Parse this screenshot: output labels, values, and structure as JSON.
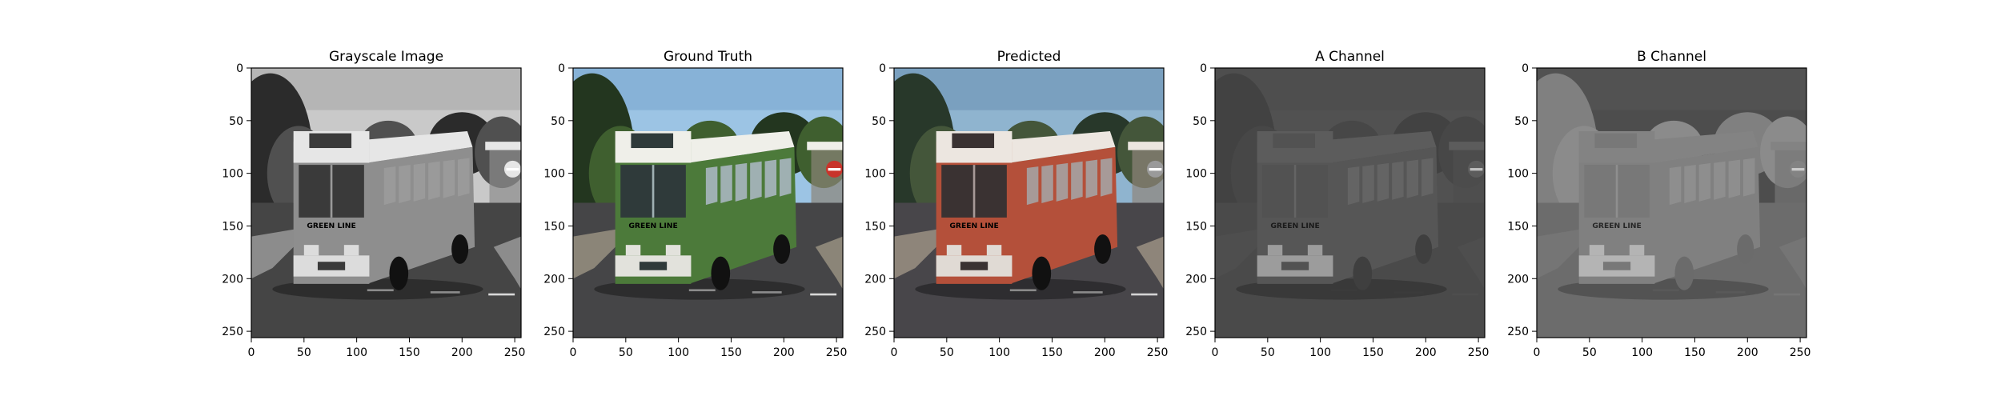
{
  "panels": [
    {
      "title": "Grayscale Image",
      "variant": "gray"
    },
    {
      "title": "Ground Truth",
      "variant": "truth"
    },
    {
      "title": "Predicted",
      "variant": "pred"
    },
    {
      "title": "A Channel",
      "variant": "achan"
    },
    {
      "title": "B Channel",
      "variant": "bchan"
    }
  ],
  "axes": {
    "x_ticks": [
      "0",
      "50",
      "100",
      "150",
      "200",
      "250"
    ],
    "y_ticks": [
      "0",
      "50",
      "100",
      "150",
      "200",
      "250"
    ],
    "range": [
      0,
      256
    ]
  },
  "scene": {
    "bus_banner_text": "GREEN LINE"
  },
  "colors": {
    "sky_truth": "#9cc4e4",
    "bus_green": "#4c7a3a",
    "bus_red_pred": "#b4503a",
    "tree_dark": "#23361f",
    "road": "#454547",
    "channel_bg": "#4a4a4a"
  }
}
